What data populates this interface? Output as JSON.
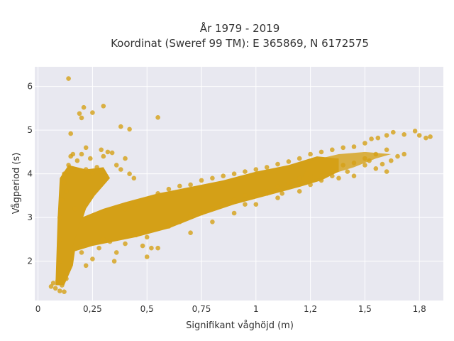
{
  "chart_data": {
    "type": "scatter",
    "title": "År 1979 - 2019",
    "subtitle": "Koordinat (Sweref 99 TM): E 365869, N 6172575",
    "xlabel": "Signifikant våghöjd (m)",
    "ylabel": "Vågperiod (s)",
    "xlim": [
      -0.015,
      1.86
    ],
    "ylim": [
      1.1,
      6.45
    ],
    "x_ticks": [
      {
        "value": 0,
        "label": "0"
      },
      {
        "value": 0.25,
        "label": "0,25"
      },
      {
        "value": 0.5,
        "label": "0,5"
      },
      {
        "value": 0.75,
        "label": "0,75"
      },
      {
        "value": 1,
        "label": "1"
      },
      {
        "value": 1.25,
        "label": "1,2"
      },
      {
        "value": 1.5,
        "label": "1,5"
      },
      {
        "value": 1.75,
        "label": "1,8"
      }
    ],
    "y_ticks": [
      {
        "value": 2,
        "label": "2"
      },
      {
        "value": 3,
        "label": "3"
      },
      {
        "value": 4,
        "label": "4"
      },
      {
        "value": 5,
        "label": "5"
      },
      {
        "value": 6,
        "label": "6"
      }
    ],
    "grid": true,
    "colors": {
      "marker": "#d4a017",
      "plot_background": "#e8e8f0",
      "grid": "#ffffff"
    },
    "series": [
      {
        "points": [
          [
            0.06,
            1.42
          ],
          [
            0.07,
            1.5
          ],
          [
            0.08,
            1.38
          ],
          [
            0.09,
            1.55
          ],
          [
            0.1,
            1.32
          ],
          [
            0.11,
            1.45
          ],
          [
            0.12,
            1.3
          ],
          [
            0.13,
            1.6
          ],
          [
            0.1,
            2.0
          ],
          [
            0.1,
            2.5
          ],
          [
            0.1,
            3.0
          ],
          [
            0.11,
            3.4
          ],
          [
            0.12,
            3.8
          ],
          [
            0.12,
            4.0
          ],
          [
            0.13,
            3.6
          ],
          [
            0.14,
            4.2
          ],
          [
            0.15,
            4.4
          ],
          [
            0.16,
            4.45
          ],
          [
            0.18,
            4.3
          ],
          [
            0.2,
            4.45
          ],
          [
            0.22,
            4.1
          ],
          [
            0.24,
            4.35
          ],
          [
            0.25,
            4.0
          ],
          [
            0.27,
            4.15
          ],
          [
            0.3,
            4.4
          ],
          [
            0.32,
            4.5
          ],
          [
            0.34,
            4.48
          ],
          [
            0.36,
            4.2
          ],
          [
            0.38,
            4.1
          ],
          [
            0.4,
            4.35
          ],
          [
            0.42,
            4.0
          ],
          [
            0.44,
            3.9
          ],
          [
            0.14,
            6.18
          ],
          [
            0.19,
            5.38
          ],
          [
            0.2,
            5.28
          ],
          [
            0.21,
            5.52
          ],
          [
            0.25,
            5.4
          ],
          [
            0.3,
            5.55
          ],
          [
            0.38,
            5.08
          ],
          [
            0.42,
            5.02
          ],
          [
            0.55,
            5.29
          ],
          [
            0.15,
            4.92
          ],
          [
            0.22,
            4.6
          ],
          [
            0.29,
            4.55
          ],
          [
            0.17,
            3.2
          ],
          [
            0.2,
            2.2
          ],
          [
            0.22,
            1.9
          ],
          [
            0.25,
            2.05
          ],
          [
            0.28,
            2.3
          ],
          [
            0.3,
            2.5
          ],
          [
            0.33,
            2.45
          ],
          [
            0.36,
            2.2
          ],
          [
            0.4,
            2.4
          ],
          [
            0.45,
            2.6
          ],
          [
            0.5,
            2.55
          ],
          [
            0.55,
            2.3
          ],
          [
            0.6,
            2.8
          ],
          [
            0.65,
            2.9
          ],
          [
            0.7,
            3.05
          ],
          [
            0.75,
            3.1
          ],
          [
            0.8,
            3.2
          ],
          [
            0.85,
            3.3
          ],
          [
            0.9,
            3.4
          ],
          [
            0.95,
            3.5
          ],
          [
            1.0,
            3.55
          ],
          [
            1.05,
            3.6
          ],
          [
            1.1,
            3.7
          ],
          [
            1.15,
            3.8
          ],
          [
            1.2,
            3.9
          ],
          [
            1.25,
            3.95
          ],
          [
            1.3,
            4.05
          ],
          [
            1.35,
            4.1
          ],
          [
            1.4,
            4.2
          ],
          [
            1.45,
            4.25
          ],
          [
            1.5,
            4.35
          ],
          [
            1.55,
            4.45
          ],
          [
            1.6,
            4.55
          ],
          [
            0.4,
            3.2
          ],
          [
            0.45,
            3.3
          ],
          [
            0.5,
            3.4
          ],
          [
            0.55,
            3.55
          ],
          [
            0.6,
            3.65
          ],
          [
            0.65,
            3.72
          ],
          [
            0.7,
            3.75
          ],
          [
            0.75,
            3.85
          ],
          [
            0.8,
            3.9
          ],
          [
            0.85,
            3.95
          ],
          [
            0.9,
            4.0
          ],
          [
            0.95,
            4.05
          ],
          [
            1.0,
            4.1
          ],
          [
            1.05,
            4.15
          ],
          [
            1.1,
            4.22
          ],
          [
            1.15,
            4.28
          ],
          [
            1.2,
            4.35
          ],
          [
            1.25,
            4.45
          ],
          [
            1.3,
            4.5
          ],
          [
            1.35,
            4.55
          ],
          [
            1.4,
            4.6
          ],
          [
            1.45,
            4.62
          ],
          [
            1.5,
            4.7
          ],
          [
            1.53,
            4.8
          ],
          [
            1.56,
            4.82
          ],
          [
            1.6,
            4.88
          ],
          [
            1.63,
            4.95
          ],
          [
            1.68,
            4.9
          ],
          [
            1.73,
            4.98
          ],
          [
            1.78,
            4.82
          ],
          [
            1.8,
            4.85
          ],
          [
            1.75,
            4.88
          ],
          [
            1.5,
            4.2
          ],
          [
            1.52,
            4.3
          ],
          [
            1.55,
            4.12
          ],
          [
            1.58,
            4.22
          ],
          [
            1.6,
            4.05
          ],
          [
            1.62,
            4.3
          ],
          [
            1.65,
            4.4
          ],
          [
            1.68,
            4.45
          ],
          [
            1.45,
            3.95
          ],
          [
            1.42,
            4.05
          ],
          [
            1.38,
            3.9
          ],
          [
            1.35,
            3.95
          ],
          [
            1.3,
            3.85
          ],
          [
            1.25,
            3.75
          ],
          [
            0.7,
            2.65
          ],
          [
            0.8,
            2.9
          ],
          [
            0.9,
            3.1
          ],
          [
            1.0,
            3.3
          ],
          [
            1.1,
            3.45
          ],
          [
            1.2,
            3.6
          ],
          [
            0.95,
            3.3
          ],
          [
            1.05,
            3.55
          ],
          [
            1.12,
            3.55
          ],
          [
            0.5,
            2.1
          ],
          [
            0.52,
            2.3
          ],
          [
            0.48,
            2.35
          ],
          [
            0.35,
            2.0
          ]
        ]
      }
    ]
  }
}
